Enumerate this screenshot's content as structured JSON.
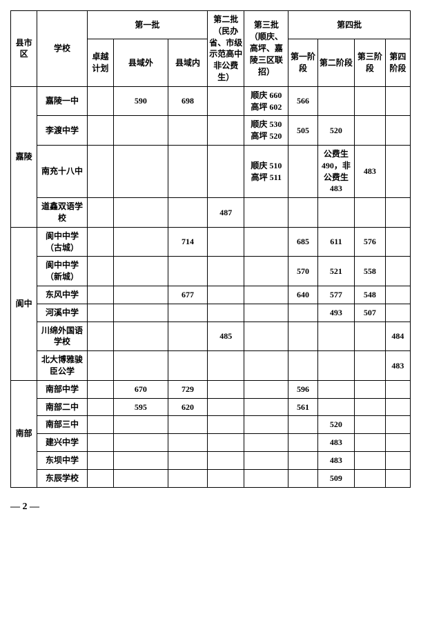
{
  "headers": {
    "district": "县市区",
    "school": "学校",
    "batch1": "第一批",
    "batch1_zy": "卓越计划",
    "batch1_xyw": "县域外",
    "batch1_xyn": "县域内",
    "batch2": "第二批（民办省、市级示范高中非公费生）",
    "batch3": "第三批（顺庆、高坪、嘉陵三区联招）",
    "batch4": "第四批",
    "batch4_p1": "第一阶段",
    "batch4_p2": "第二阶段",
    "batch4_p3": "第三阶段",
    "batch4_p4": "第四阶段"
  },
  "districts": [
    {
      "name": "嘉陵",
      "schools": [
        {
          "name": "嘉陵一中",
          "zy": "",
          "xyw": "590",
          "xyn": "698",
          "b2": "",
          "b3": "顺庆 660\n高坪 602",
          "p1": "566",
          "p2": "",
          "p3": "",
          "p4": ""
        },
        {
          "name": "李渡中学",
          "zy": "",
          "xyw": "",
          "xyn": "",
          "b2": "",
          "b3": "顺庆 530\n高坪 520",
          "p1": "505",
          "p2": "520",
          "p3": "",
          "p4": ""
        },
        {
          "name": "南充十八中",
          "zy": "",
          "xyw": "",
          "xyn": "",
          "b2": "",
          "b3": "顺庆 510\n高坪 511",
          "p1": "",
          "p2": "公费生 490，非公费生 483",
          "p3": "483",
          "p4": ""
        },
        {
          "name": "道鑫双语学校",
          "zy": "",
          "xyw": "",
          "xyn": "",
          "b2": "487",
          "b3": "",
          "p1": "",
          "p2": "",
          "p3": "",
          "p4": ""
        }
      ]
    },
    {
      "name": "阆中",
      "schools": [
        {
          "name": "阆中中学（古城）",
          "zy": "",
          "xyw": "",
          "xyn": "714",
          "b2": "",
          "b3": "",
          "p1": "685",
          "p2": "611",
          "p3": "576",
          "p4": ""
        },
        {
          "name": "阆中中学（新城）",
          "zy": "",
          "xyw": "",
          "xyn": "",
          "b2": "",
          "b3": "",
          "p1": "570",
          "p2": "521",
          "p3": "558",
          "p4": ""
        },
        {
          "name": "东风中学",
          "zy": "",
          "xyw": "",
          "xyn": "677",
          "b2": "",
          "b3": "",
          "p1": "640",
          "p2": "577",
          "p3": "548",
          "p4": ""
        },
        {
          "name": "河溪中学",
          "zy": "",
          "xyw": "",
          "xyn": "",
          "b2": "",
          "b3": "",
          "p1": "",
          "p2": "493",
          "p3": "507",
          "p4": ""
        },
        {
          "name": "川绵外国语学校",
          "zy": "",
          "xyw": "",
          "xyn": "",
          "b2": "485",
          "b3": "",
          "p1": "",
          "p2": "",
          "p3": "",
          "p4": "484"
        },
        {
          "name": "北大博雅骏臣公学",
          "zy": "",
          "xyw": "",
          "xyn": "",
          "b2": "",
          "b3": "",
          "p1": "",
          "p2": "",
          "p3": "",
          "p4": "483"
        }
      ]
    },
    {
      "name": "南部",
      "schools": [
        {
          "name": "南部中学",
          "zy": "",
          "xyw": "670",
          "xyn": "729",
          "b2": "",
          "b3": "",
          "p1": "596",
          "p2": "",
          "p3": "",
          "p4": ""
        },
        {
          "name": "南部二中",
          "zy": "",
          "xyw": "595",
          "xyn": "620",
          "b2": "",
          "b3": "",
          "p1": "561",
          "p2": "",
          "p3": "",
          "p4": ""
        },
        {
          "name": "南部三中",
          "zy": "",
          "xyw": "",
          "xyn": "",
          "b2": "",
          "b3": "",
          "p1": "",
          "p2": "520",
          "p3": "",
          "p4": ""
        },
        {
          "name": "建兴中学",
          "zy": "",
          "xyw": "",
          "xyn": "",
          "b2": "",
          "b3": "",
          "p1": "",
          "p2": "483",
          "p3": "",
          "p4": ""
        },
        {
          "name": "东坝中学",
          "zy": "",
          "xyw": "",
          "xyn": "",
          "b2": "",
          "b3": "",
          "p1": "",
          "p2": "483",
          "p3": "",
          "p4": ""
        },
        {
          "name": "东辰学校",
          "zy": "",
          "xyw": "",
          "xyn": "",
          "b2": "",
          "b3": "",
          "p1": "",
          "p2": "509",
          "p3": "",
          "p4": ""
        }
      ]
    }
  ],
  "pageNum": "— 2 —"
}
